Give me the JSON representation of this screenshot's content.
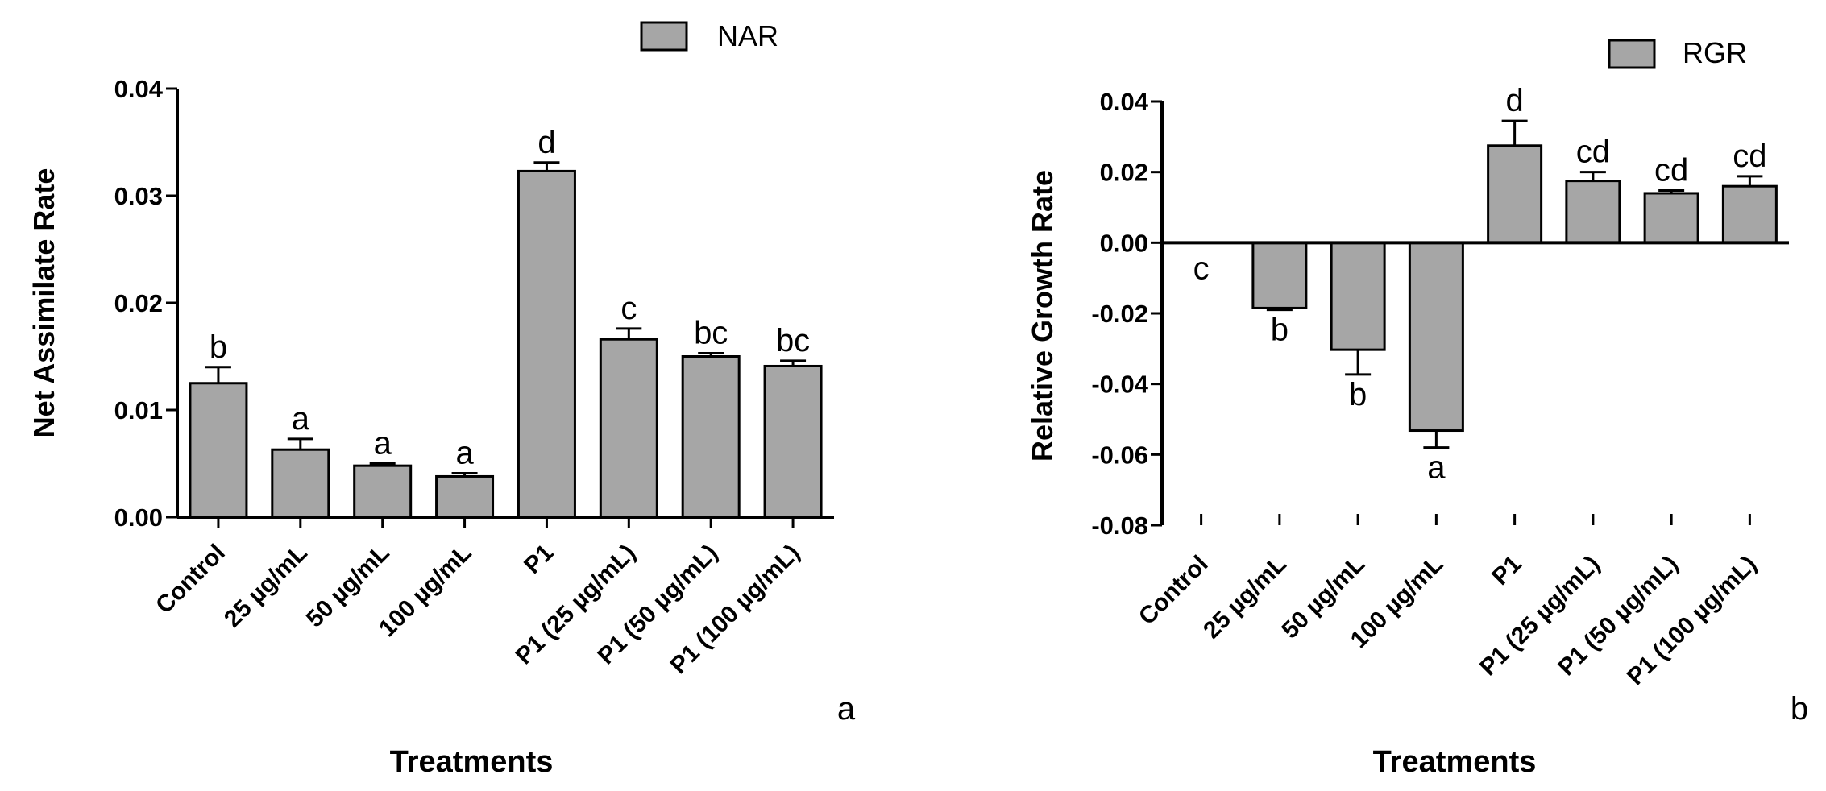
{
  "chart_data": [
    {
      "type": "bar",
      "panel_label": "a",
      "legend": [
        "NAR"
      ],
      "ylabel": "Net Assimilate Rate",
      "xlabel": "Treatments",
      "ylim": [
        0,
        0.04
      ],
      "yticks": [
        0,
        0.01,
        0.02,
        0.03,
        0.04
      ],
      "ytick_labels": [
        "0.00",
        "0.01",
        "0.02",
        "0.03",
        "0.04"
      ],
      "categories": [
        "Control",
        "25 µg/mL",
        "50 µg/mL",
        "100 µg/mL",
        "P1",
        "P1 (25 µg/mL)",
        "P1 (50 µg/mL)",
        "P1 (100 µg/mL)"
      ],
      "series": [
        {
          "name": "NAR",
          "values": [
            0.0125,
            0.0063,
            0.0048,
            0.0038,
            0.0323,
            0.0166,
            0.015,
            0.0141
          ],
          "errors": [
            0.0015,
            0.001,
            0.0002,
            0.0003,
            0.0008,
            0.001,
            0.0003,
            0.0005
          ]
        }
      ],
      "annotations": [
        "b",
        "a",
        "a",
        "a",
        "d",
        "c",
        "bc",
        "bc"
      ]
    },
    {
      "type": "bar",
      "panel_label": "b",
      "legend": [
        "RGR"
      ],
      "ylabel": "Relative Growth Rate",
      "xlabel": "Treatments",
      "ylim": [
        -0.08,
        0.04
      ],
      "yticks": [
        -0.08,
        -0.06,
        -0.04,
        -0.02,
        0,
        0.02,
        0.04
      ],
      "ytick_labels": [
        "-0.08",
        "-0.06",
        "-0.04",
        "-0.02",
        "0.00",
        "0.02",
        "0.04"
      ],
      "categories": [
        "Control",
        "25 µg/mL",
        "50 µg/mL",
        "100 µg/mL",
        "P1",
        "P1 (25 µg/mL)",
        "P1 (50 µg/mL)",
        "P1 (100 µg/mL)"
      ],
      "series": [
        {
          "name": "RGR",
          "values": [
            0,
            -0.0185,
            -0.0303,
            -0.0532,
            0.0275,
            0.0175,
            0.014,
            0.016
          ],
          "errors": [
            0,
            0.0005,
            0.007,
            0.0048,
            0.007,
            0.0025,
            0.0008,
            0.0028
          ]
        }
      ],
      "annotations": [
        "c",
        "b",
        "b",
        "a",
        "d",
        "cd",
        "cd",
        "cd"
      ]
    }
  ]
}
